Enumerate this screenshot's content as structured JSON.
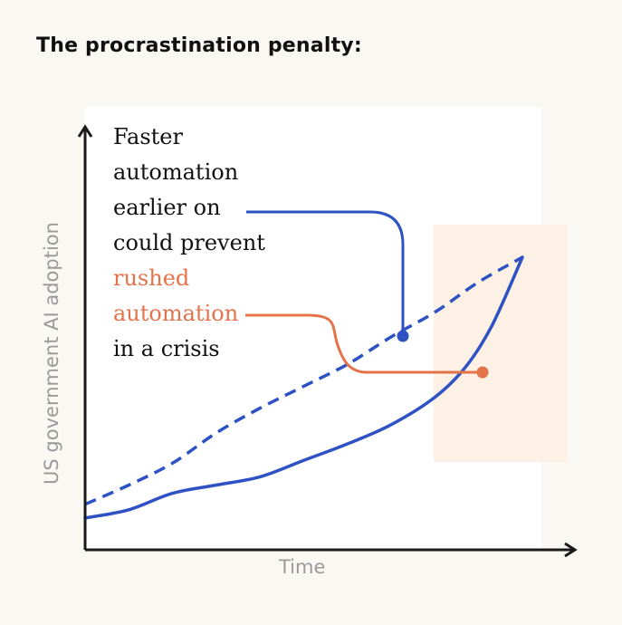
{
  "title": "The procrastination penalty:",
  "colors": {
    "background": "#f9f8f3",
    "plot_area": "#ffffff",
    "highlight_area": "#fdf0e4",
    "blue": "#2e52c4",
    "orange": "#e4734a",
    "axis": "#1a1a1a",
    "axis_label": "#9a9a9a"
  },
  "chart_data": {
    "type": "line",
    "title": "The procrastination penalty:",
    "xlabel": "Time",
    "ylabel": "US government AI adoption",
    "x_ticks": [],
    "y_ticks": [],
    "xlim": [
      0,
      100
    ],
    "ylim": [
      0,
      100
    ],
    "grid": false,
    "series": [
      {
        "style": "dashed",
        "color": "#2e52c4",
        "values": [
          [
            0,
            10
          ],
          [
            10,
            17
          ],
          [
            20,
            25
          ],
          [
            30,
            36
          ],
          [
            40,
            45
          ],
          [
            50,
            53
          ],
          [
            60,
            61
          ],
          [
            70,
            71
          ],
          [
            80,
            80
          ],
          [
            90,
            91
          ],
          [
            100,
            100
          ]
        ]
      },
      {
        "style": "solid",
        "color": "#2e52c4",
        "values": [
          [
            0,
            5
          ],
          [
            10,
            8
          ],
          [
            20,
            14
          ],
          [
            30,
            17
          ],
          [
            40,
            20
          ],
          [
            50,
            26
          ],
          [
            60,
            32
          ],
          [
            70,
            39
          ],
          [
            80,
            49
          ],
          [
            87,
            60
          ],
          [
            93,
            75
          ],
          [
            100,
            100
          ]
        ]
      }
    ],
    "highlight_region": {
      "x": [
        80,
        110
      ],
      "y": [
        20,
        81
      ]
    },
    "annotation": {
      "lines": [
        "Faster",
        "automation",
        "earlier on",
        "could prevent",
        "rushed",
        "automation",
        "in a crisis"
      ],
      "accent_lines": [
        4,
        5
      ]
    }
  }
}
